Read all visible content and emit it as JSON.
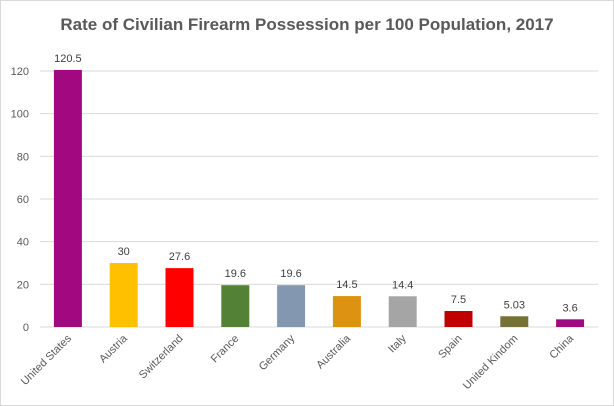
{
  "chart_data": {
    "type": "bar",
    "title": "Rate of Civilian Firearm Possession per 100 Population, 2017",
    "xlabel": "",
    "ylabel": "",
    "ylim": [
      0,
      120
    ],
    "yticks": [
      0,
      20,
      40,
      60,
      80,
      100,
      120
    ],
    "grid": true,
    "categories": [
      "United States",
      "Austria",
      "Switzerland",
      "France",
      "Germany",
      "Australia",
      "Italy",
      "Spain",
      "United Kindom",
      "China"
    ],
    "values": [
      120.5,
      30,
      27.6,
      19.6,
      19.6,
      14.5,
      14.4,
      7.5,
      5.03,
      3.6
    ],
    "data_labels": [
      "120.5",
      "30",
      "27.6",
      "19.6",
      "19.6",
      "14.5",
      "14.4",
      "7.5",
      "5.03",
      "3.6"
    ],
    "colors": [
      "#a2087f",
      "#ffc000",
      "#ff0000",
      "#538135",
      "#8497b0",
      "#dd9311",
      "#a5a5a5",
      "#c00000",
      "#767135",
      "#a2087f"
    ]
  }
}
